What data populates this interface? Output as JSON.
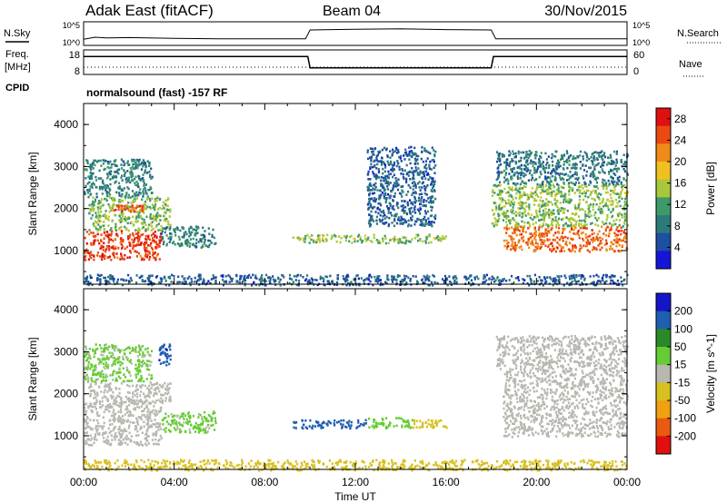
{
  "header": {
    "station": "Adak East (fitACF)",
    "beam": "Beam 04",
    "date": "30/Nov/2015"
  },
  "aux_labels": {
    "nsky": "N.Sky",
    "nsky_top": "10^5",
    "nsky_bottom": "10^0",
    "nsearch": "N.Search",
    "nsearch_top": "10^5",
    "nsearch_bottom": "10^0",
    "freq_line1": "Freq.",
    "freq_line2": "[MHz]",
    "freq_top": "18",
    "freq_bottom": "8",
    "nave": "Nave",
    "nave_top": "60",
    "nave_bottom": "0",
    "cpid": "CPID",
    "cpid_text": "normalsound (fast) -157 RF"
  },
  "colors": {
    "power_scale": [
      "#1515d8",
      "#1e4fa0",
      "#2d7a7a",
      "#3f9a6a",
      "#a8c83a",
      "#f0c020",
      "#f08a18",
      "#ea4a10",
      "#e01010"
    ],
    "velocity_scale": [
      "#1515c8",
      "#1e5fb0",
      "#2a8a2a",
      "#66cc33",
      "#b8b8b0",
      "#d8c020",
      "#f0a010",
      "#ea5a10",
      "#e01010"
    ]
  },
  "chart_data": [
    {
      "type": "line",
      "name": "N.Sky / N.Search",
      "x": [
        0,
        0.5,
        1,
        2,
        4,
        6,
        8,
        9.8,
        10,
        12,
        14,
        16,
        18,
        18.2,
        20,
        22,
        24
      ],
      "series": [
        {
          "name": "N.Sky",
          "values": [
            1.1,
            1.6,
            1.4,
            1.5,
            1.3,
            1.2,
            1.2,
            1.2,
            3.4,
            3.6,
            3.7,
            3.5,
            3.4,
            1.2,
            1.2,
            1.2,
            1.2
          ]
        }
      ],
      "ylim": [
        0,
        5
      ]
    },
    {
      "type": "line",
      "name": "Freq / Nave",
      "x": [
        0,
        9.9,
        10,
        18,
        18.1,
        24
      ],
      "series": [
        {
          "name": "Freq.",
          "values": [
            15.5,
            15.5,
            10.5,
            10.5,
            15.5,
            15.5
          ]
        }
      ],
      "ylim": [
        8,
        18
      ]
    },
    {
      "type": "heatmap",
      "title": "",
      "xlabel": "Time UT",
      "ylabel": "Slant Range [km]",
      "x_ticks": [
        "00:00",
        "04:00",
        "08:00",
        "12:00",
        "16:00",
        "20:00",
        "00:00"
      ],
      "y_ticks": [
        "1000",
        "2000",
        "3000",
        "4000"
      ],
      "xlim": [
        0,
        24
      ],
      "ylim": [
        200,
        4500
      ],
      "colorbar_label": "Power [dB]",
      "colorbar_ticks": [
        "4",
        "8",
        "12",
        "16",
        "20",
        "24",
        "28"
      ],
      "zlim": [
        0,
        30
      ],
      "regions": [
        {
          "t0": 0,
          "t1": 3.4,
          "r0": 800,
          "r1": 1500,
          "level": 26
        },
        {
          "t0": 0.2,
          "t1": 3.8,
          "r0": 1500,
          "r1": 2300,
          "level": 14
        },
        {
          "t0": 0,
          "t1": 3.0,
          "r0": 2300,
          "r1": 3200,
          "level": 9
        },
        {
          "t0": 1.3,
          "t1": 2.6,
          "r0": 1950,
          "r1": 2100,
          "level": 25
        },
        {
          "t0": 3.4,
          "t1": 5.8,
          "r0": 1100,
          "r1": 1600,
          "level": 9
        },
        {
          "t0": 9.2,
          "t1": 16.0,
          "r0": 1200,
          "r1": 1400,
          "level": 14
        },
        {
          "t0": 12.5,
          "t1": 15.5,
          "r0": 1600,
          "r1": 3500,
          "level": 6
        },
        {
          "t0": 18.5,
          "t1": 24,
          "r0": 1000,
          "r1": 1600,
          "level": 24
        },
        {
          "t0": 18.0,
          "t1": 24,
          "r0": 1600,
          "r1": 2600,
          "level": 14
        },
        {
          "t0": 18.2,
          "t1": 24,
          "r0": 2600,
          "r1": 3400,
          "level": 8
        },
        {
          "t0": 0,
          "t1": 24,
          "r0": 200,
          "r1": 450,
          "level": 6
        }
      ]
    },
    {
      "type": "heatmap",
      "title": "",
      "xlabel": "Time UT",
      "ylabel": "Slant Range [km]",
      "x_ticks": [
        "00:00",
        "04:00",
        "08:00",
        "12:00",
        "16:00",
        "20:00",
        "00:00"
      ],
      "y_ticks": [
        "1000",
        "2000",
        "3000",
        "4000"
      ],
      "xlim": [
        0,
        24
      ],
      "ylim": [
        200,
        4500
      ],
      "colorbar_label": "Velocity [m s^-1]",
      "colorbar_ticks": [
        "200",
        "100",
        "50",
        "15",
        "-15",
        "-50",
        "-100",
        "-200"
      ],
      "zlim": [
        -250,
        250
      ],
      "regions": [
        {
          "t0": 0,
          "t1": 3.4,
          "r0": 800,
          "r1": 1800,
          "level": 0
        },
        {
          "t0": 0.2,
          "t1": 3.8,
          "r0": 1800,
          "r1": 2300,
          "level": 0
        },
        {
          "t0": 0,
          "t1": 3.0,
          "r0": 2300,
          "r1": 3200,
          "level": 40
        },
        {
          "t0": 3.3,
          "t1": 3.8,
          "r0": 2700,
          "r1": 3200,
          "level": 180
        },
        {
          "t0": 3.4,
          "t1": 5.8,
          "r0": 1100,
          "r1": 1600,
          "level": 45
        },
        {
          "t0": 9.2,
          "t1": 12.5,
          "r0": 1200,
          "r1": 1400,
          "level": 170
        },
        {
          "t0": 12.5,
          "t1": 14.5,
          "r0": 1200,
          "r1": 1450,
          "level": 50
        },
        {
          "t0": 14.5,
          "t1": 16.0,
          "r0": 1200,
          "r1": 1400,
          "level": -60
        },
        {
          "t0": 18.5,
          "t1": 24,
          "r0": 1000,
          "r1": 2600,
          "level": 0
        },
        {
          "t0": 18.2,
          "t1": 24,
          "r0": 2600,
          "r1": 3400,
          "level": 0
        },
        {
          "t0": 0,
          "t1": 24,
          "r0": 200,
          "r1": 450,
          "level": -60
        }
      ]
    }
  ]
}
